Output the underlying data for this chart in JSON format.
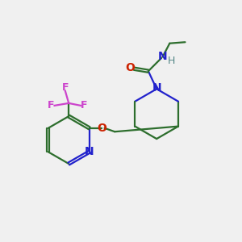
{
  "bg_color": "#f0f0f0",
  "bond_color": "#2d6e2d",
  "n_color": "#2222cc",
  "o_color": "#cc2200",
  "f_color": "#cc44cc",
  "h_color": "#558888",
  "line_width": 1.6,
  "font_size": 10,
  "figsize": [
    3.0,
    3.0
  ],
  "dpi": 100,
  "xlim": [
    0,
    10
  ],
  "ylim": [
    0,
    10
  ]
}
